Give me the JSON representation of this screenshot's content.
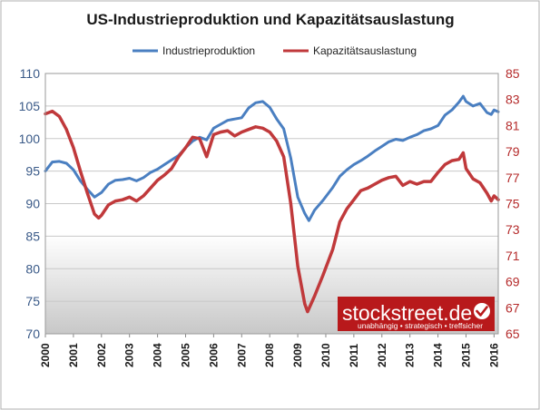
{
  "chart_data": {
    "type": "line",
    "title": "US-Industrieproduktion und Kapazitätsauslastung",
    "legend_position": "top",
    "grid": true,
    "x_ticks": [
      "2000",
      "2001",
      "2002",
      "2003",
      "2004",
      "2005",
      "2006",
      "2007",
      "2008",
      "2009",
      "2010",
      "2011",
      "2012",
      "2013",
      "2014",
      "2015",
      "2016"
    ],
    "xlim": [
      2000.0,
      2016.15
    ],
    "y_left": {
      "range": [
        70,
        110
      ],
      "ticks": [
        "70",
        "75",
        "80",
        "85",
        "90",
        "95",
        "100",
        "105",
        "110"
      ]
    },
    "y_right": {
      "range": [
        65,
        85
      ],
      "ticks": [
        "65",
        "67",
        "69",
        "71",
        "73",
        "75",
        "77",
        "79",
        "81",
        "83",
        "85"
      ]
    },
    "series": [
      {
        "name": "Industrieproduktion",
        "axis": "left",
        "color": "#4a7fc1",
        "points": [
          [
            2000.0,
            95.0
          ],
          [
            2000.25,
            96.4
          ],
          [
            2000.5,
            96.5
          ],
          [
            2000.75,
            96.2
          ],
          [
            2001.0,
            95.2
          ],
          [
            2001.25,
            93.5
          ],
          [
            2001.5,
            92.2
          ],
          [
            2001.75,
            91.0
          ],
          [
            2002.0,
            91.7
          ],
          [
            2002.25,
            93.0
          ],
          [
            2002.5,
            93.6
          ],
          [
            2002.75,
            93.7
          ],
          [
            2003.0,
            93.9
          ],
          [
            2003.25,
            93.5
          ],
          [
            2003.5,
            94.0
          ],
          [
            2003.75,
            94.8
          ],
          [
            2004.0,
            95.3
          ],
          [
            2004.25,
            96.0
          ],
          [
            2004.5,
            96.7
          ],
          [
            2004.75,
            97.4
          ],
          [
            2005.0,
            98.6
          ],
          [
            2005.25,
            99.6
          ],
          [
            2005.5,
            100.2
          ],
          [
            2005.75,
            99.8
          ],
          [
            2006.0,
            101.6
          ],
          [
            2006.25,
            102.2
          ],
          [
            2006.5,
            102.8
          ],
          [
            2006.75,
            103.0
          ],
          [
            2007.0,
            103.2
          ],
          [
            2007.25,
            104.7
          ],
          [
            2007.5,
            105.5
          ],
          [
            2007.75,
            105.7
          ],
          [
            2008.0,
            104.8
          ],
          [
            2008.25,
            103.0
          ],
          [
            2008.5,
            101.5
          ],
          [
            2008.75,
            97.0
          ],
          [
            2009.0,
            91.0
          ],
          [
            2009.25,
            88.5
          ],
          [
            2009.4,
            87.4
          ],
          [
            2009.6,
            89.0
          ],
          [
            2009.9,
            90.5
          ],
          [
            2010.25,
            92.5
          ],
          [
            2010.5,
            94.2
          ],
          [
            2010.75,
            95.2
          ],
          [
            2011.0,
            96.0
          ],
          [
            2011.25,
            96.6
          ],
          [
            2011.5,
            97.3
          ],
          [
            2011.75,
            98.1
          ],
          [
            2012.0,
            98.8
          ],
          [
            2012.25,
            99.5
          ],
          [
            2012.5,
            99.9
          ],
          [
            2012.75,
            99.7
          ],
          [
            2013.0,
            100.2
          ],
          [
            2013.25,
            100.6
          ],
          [
            2013.5,
            101.2
          ],
          [
            2013.75,
            101.5
          ],
          [
            2014.0,
            102.0
          ],
          [
            2014.25,
            103.6
          ],
          [
            2014.5,
            104.4
          ],
          [
            2014.75,
            105.6
          ],
          [
            2014.9,
            106.5
          ],
          [
            2015.0,
            105.7
          ],
          [
            2015.25,
            105.0
          ],
          [
            2015.5,
            105.4
          ],
          [
            2015.75,
            104.0
          ],
          [
            2015.9,
            103.7
          ],
          [
            2016.0,
            104.4
          ],
          [
            2016.15,
            104.1
          ]
        ]
      },
      {
        "name": "Kapazitätsauslastung",
        "axis": "right",
        "color": "#c0393b",
        "points": [
          [
            2000.0,
            81.9
          ],
          [
            2000.25,
            82.1
          ],
          [
            2000.5,
            81.7
          ],
          [
            2000.75,
            80.7
          ],
          [
            2001.0,
            79.3
          ],
          [
            2001.25,
            77.5
          ],
          [
            2001.5,
            75.8
          ],
          [
            2001.75,
            74.2
          ],
          [
            2001.9,
            73.9
          ],
          [
            2002.0,
            74.1
          ],
          [
            2002.25,
            74.9
          ],
          [
            2002.5,
            75.2
          ],
          [
            2002.75,
            75.3
          ],
          [
            2003.0,
            75.5
          ],
          [
            2003.25,
            75.2
          ],
          [
            2003.5,
            75.6
          ],
          [
            2003.75,
            76.2
          ],
          [
            2004.0,
            76.8
          ],
          [
            2004.25,
            77.2
          ],
          [
            2004.5,
            77.7
          ],
          [
            2004.75,
            78.6
          ],
          [
            2005.0,
            79.3
          ],
          [
            2005.25,
            80.1
          ],
          [
            2005.5,
            80.0
          ],
          [
            2005.75,
            78.6
          ],
          [
            2006.0,
            80.3
          ],
          [
            2006.25,
            80.5
          ],
          [
            2006.5,
            80.6
          ],
          [
            2006.75,
            80.2
          ],
          [
            2007.0,
            80.5
          ],
          [
            2007.25,
            80.7
          ],
          [
            2007.5,
            80.9
          ],
          [
            2007.75,
            80.8
          ],
          [
            2008.0,
            80.5
          ],
          [
            2008.25,
            79.8
          ],
          [
            2008.5,
            78.6
          ],
          [
            2008.75,
            75.0
          ],
          [
            2009.0,
            70.2
          ],
          [
            2009.25,
            67.3
          ],
          [
            2009.35,
            66.7
          ],
          [
            2009.6,
            67.9
          ],
          [
            2009.9,
            69.5
          ],
          [
            2010.25,
            71.5
          ],
          [
            2010.5,
            73.6
          ],
          [
            2010.75,
            74.6
          ],
          [
            2011.0,
            75.3
          ],
          [
            2011.25,
            76.0
          ],
          [
            2011.5,
            76.2
          ],
          [
            2011.75,
            76.5
          ],
          [
            2012.0,
            76.8
          ],
          [
            2012.25,
            77.0
          ],
          [
            2012.5,
            77.1
          ],
          [
            2012.75,
            76.4
          ],
          [
            2013.0,
            76.7
          ],
          [
            2013.25,
            76.5
          ],
          [
            2013.5,
            76.7
          ],
          [
            2013.75,
            76.7
          ],
          [
            2014.0,
            77.4
          ],
          [
            2014.25,
            78.0
          ],
          [
            2014.5,
            78.3
          ],
          [
            2014.75,
            78.4
          ],
          [
            2014.9,
            78.9
          ],
          [
            2015.0,
            77.7
          ],
          [
            2015.25,
            76.9
          ],
          [
            2015.5,
            76.6
          ],
          [
            2015.75,
            75.8
          ],
          [
            2015.9,
            75.2
          ],
          [
            2016.0,
            75.6
          ],
          [
            2016.15,
            75.3
          ]
        ]
      }
    ]
  },
  "logo": {
    "text": "stockstreet.de",
    "tagline": "unabhängig • strategisch • treffsicher",
    "check": "✓"
  },
  "colors": {
    "industrie": "#4a7fc1",
    "kapazitaet": "#c0393b",
    "left_axis_text": "#3a5a88",
    "right_axis_text": "#b52b2b",
    "logo_bg": "#b8191b"
  }
}
